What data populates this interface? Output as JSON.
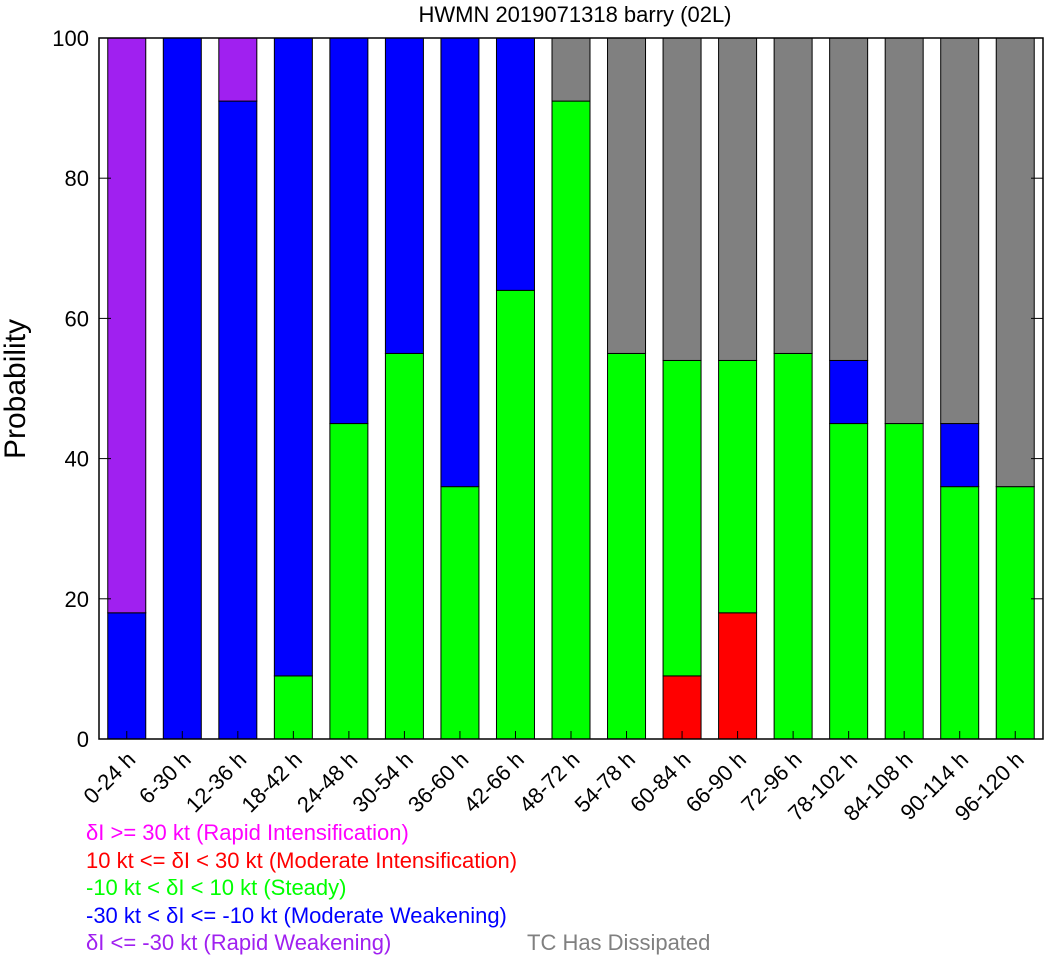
{
  "chart_data": {
    "type": "bar",
    "stacked": true,
    "title": "HWMN 2019071318 barry (02L)",
    "ylabel": "Probability",
    "xlabel": "",
    "ylim": [
      0,
      100
    ],
    "yticks": [
      0,
      20,
      40,
      60,
      80,
      100
    ],
    "grid": false,
    "categories": [
      "0-24 h",
      "6-30 h",
      "12-36 h",
      "18-42 h",
      "24-48 h",
      "30-54 h",
      "36-60 h",
      "42-66 h",
      "48-72 h",
      "54-78 h",
      "60-84 h",
      "66-90 h",
      "72-96 h",
      "78-102 h",
      "84-108 h",
      "90-114 h",
      "96-120 h"
    ],
    "series": [
      {
        "key": "moderate_intensification",
        "color": "#ff0000",
        "values": [
          0,
          0,
          0,
          0,
          0,
          0,
          0,
          0,
          0,
          0,
          9,
          18,
          0,
          0,
          0,
          0,
          0
        ]
      },
      {
        "key": "steady",
        "color": "#00ff00",
        "values": [
          0,
          0,
          0,
          9,
          45,
          55,
          36,
          64,
          91,
          55,
          45,
          36,
          55,
          45,
          45,
          36,
          36
        ]
      },
      {
        "key": "moderate_weakening",
        "color": "#0000ff",
        "values": [
          18,
          100,
          91,
          91,
          55,
          45,
          64,
          36,
          0,
          0,
          0,
          0,
          0,
          9,
          0,
          9,
          0
        ]
      },
      {
        "key": "rapid_weakening",
        "color": "#a020f0",
        "values": [
          82,
          0,
          9,
          0,
          0,
          0,
          0,
          0,
          0,
          0,
          0,
          0,
          0,
          0,
          0,
          0,
          0
        ]
      },
      {
        "key": "tc_dissipated",
        "color": "#808080",
        "values": [
          0,
          0,
          0,
          0,
          0,
          0,
          0,
          0,
          9,
          45,
          46,
          46,
          45,
          46,
          55,
          55,
          64
        ]
      }
    ],
    "legend": {
      "placement": "bottom-left",
      "entries": [
        {
          "key": "rapid_intensification",
          "text": "δI >= 30 kt (Rapid Intensification)",
          "color": "#ff00ff"
        },
        {
          "key": "moderate_intensification",
          "text": "10 kt <= δI < 30 kt (Moderate Intensification)",
          "color": "#ff0000"
        },
        {
          "key": "steady",
          "text": "-10 kt < δI < 10 kt (Steady)",
          "color": "#00ff00"
        },
        {
          "key": "moderate_weakening",
          "text": "-30 kt < δI <= -10 kt (Moderate Weakening)",
          "color": "#0000ff"
        },
        {
          "key": "rapid_weakening",
          "text": "δI <= -30 kt (Rapid Weakening)",
          "color": "#a020f0"
        },
        {
          "key": "tc_dissipated",
          "text": "TC Has Dissipated",
          "color": "#808080"
        }
      ]
    }
  }
}
